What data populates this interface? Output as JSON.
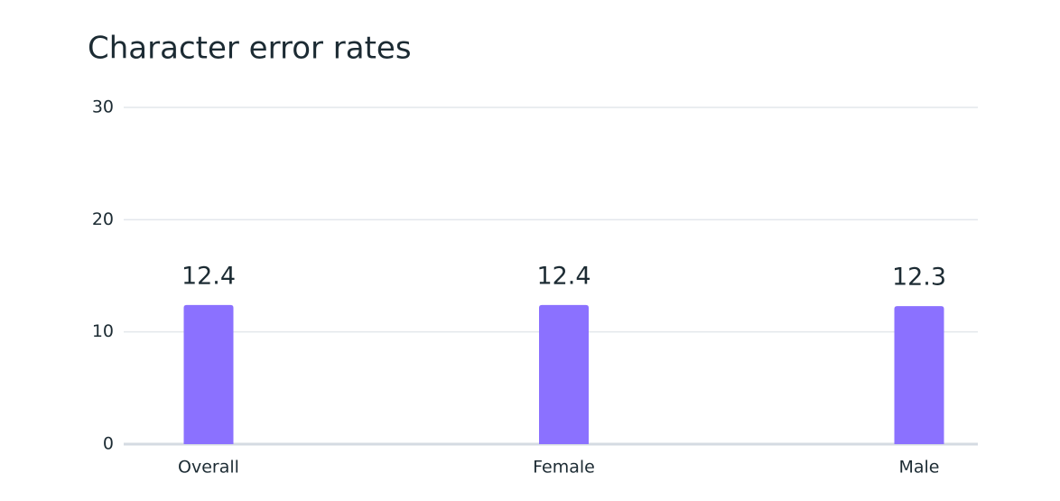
{
  "chart_data": {
    "type": "bar",
    "title": "Character error rates",
    "categories": [
      "Overall",
      "Female",
      "Male"
    ],
    "values": [
      12.4,
      12.4,
      12.3
    ],
    "color": "#8b71ff",
    "ylim": [
      0,
      30
    ],
    "yticks": [
      0,
      10,
      20,
      30
    ],
    "grid": true
  }
}
